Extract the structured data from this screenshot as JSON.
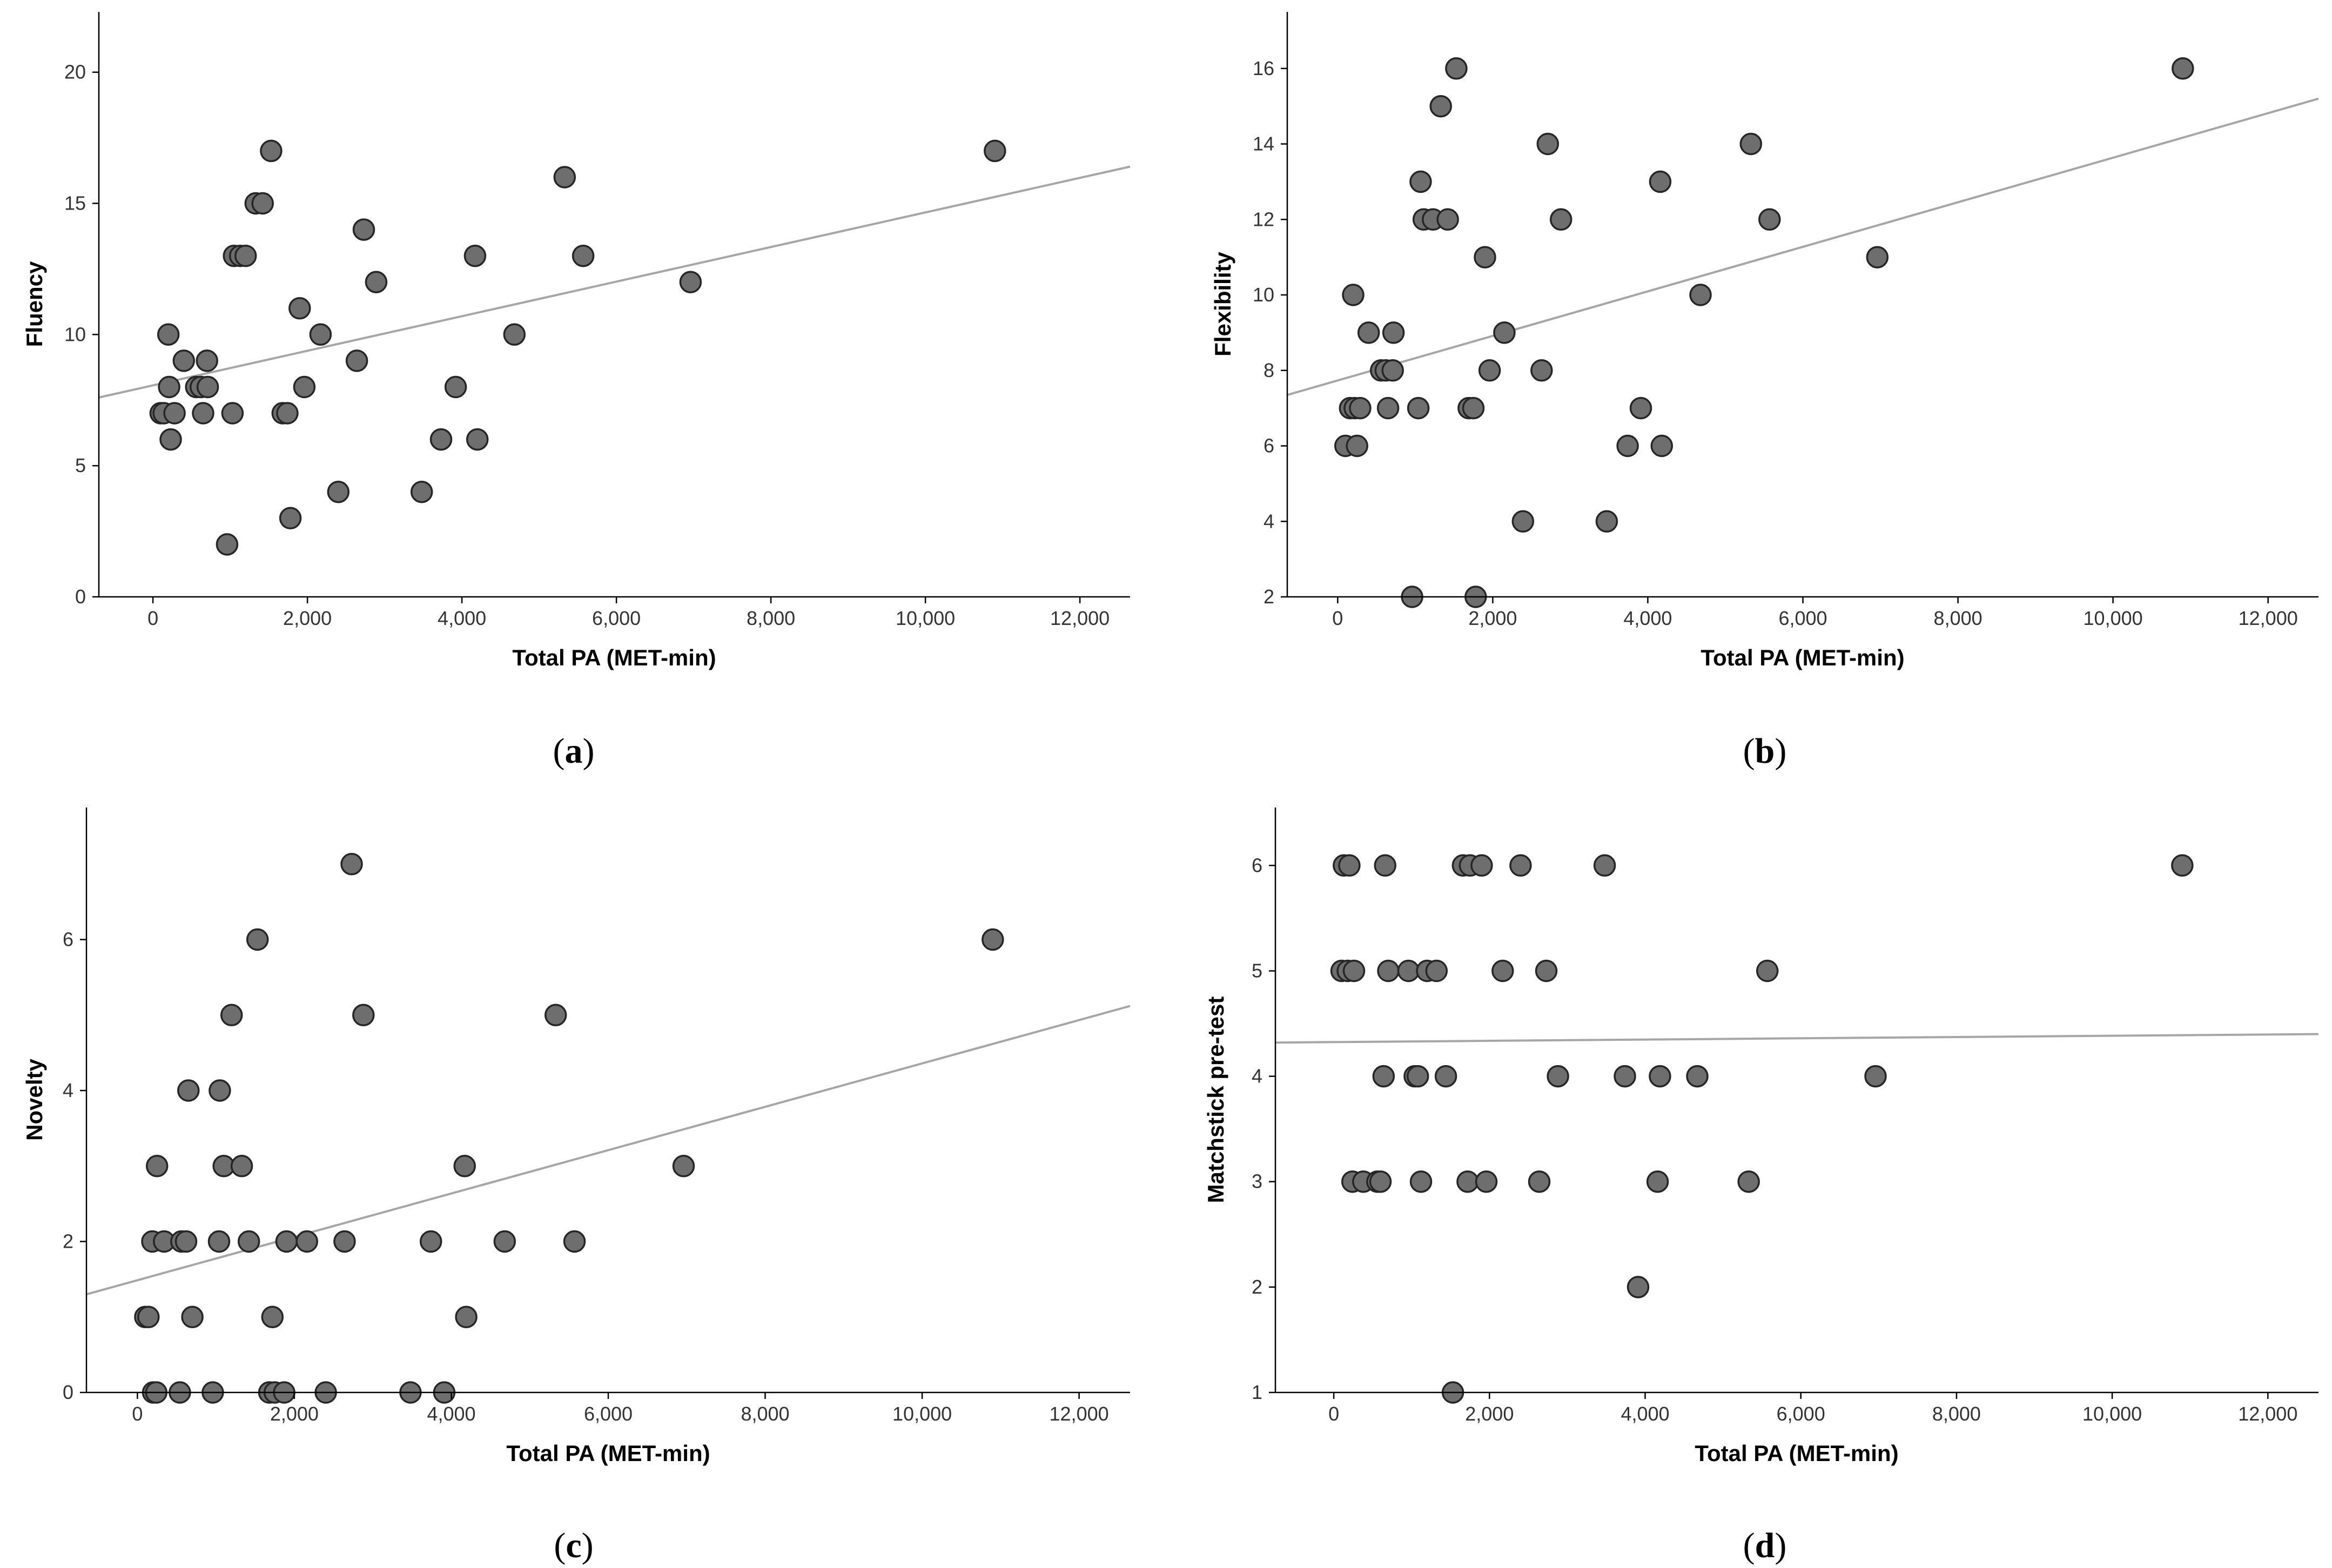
{
  "chart_data": [
    {
      "id": "a",
      "type": "scatter",
      "panel_label": "a",
      "xlabel": "Total PA (MET-min)",
      "ylabel": "Fluency",
      "xlim": [
        -700,
        12650
      ],
      "ylim": [
        0,
        22.3
      ],
      "xticks": [
        0,
        2000,
        4000,
        6000,
        8000,
        10000,
        12000
      ],
      "xtick_labels": [
        "0",
        "2,000",
        "4,000",
        "6,000",
        "8,000",
        "10,000",
        "12,000"
      ],
      "yticks": [
        0,
        5,
        10,
        15,
        20
      ],
      "ytick_labels": [
        "0",
        "5",
        "10",
        "15",
        "20"
      ],
      "fit_line": {
        "x": [
          -700,
          12650
        ],
        "y": [
          7.6,
          16.4
        ]
      },
      "points": [
        [
          100,
          7
        ],
        [
          140,
          7
        ],
        [
          200,
          10
        ],
        [
          210,
          8
        ],
        [
          230,
          6
        ],
        [
          280,
          7
        ],
        [
          400,
          9
        ],
        [
          560,
          8
        ],
        [
          620,
          8
        ],
        [
          650,
          7
        ],
        [
          700,
          9
        ],
        [
          710,
          8
        ],
        [
          960,
          2
        ],
        [
          1030,
          7
        ],
        [
          1050,
          13
        ],
        [
          1130,
          13
        ],
        [
          1200,
          13
        ],
        [
          1330,
          15
        ],
        [
          1420,
          15
        ],
        [
          1530,
          17
        ],
        [
          1680,
          7
        ],
        [
          1740,
          7
        ],
        [
          1780,
          3
        ],
        [
          1900,
          11
        ],
        [
          1960,
          8
        ],
        [
          2170,
          10
        ],
        [
          2400,
          4
        ],
        [
          2640,
          9
        ],
        [
          2730,
          14
        ],
        [
          2890,
          12
        ],
        [
          3480,
          4
        ],
        [
          3730,
          6
        ],
        [
          3920,
          8
        ],
        [
          4170,
          13
        ],
        [
          4200,
          6
        ],
        [
          4680,
          10
        ],
        [
          5330,
          16
        ],
        [
          5570,
          13
        ],
        [
          6960,
          12
        ],
        [
          10900,
          17
        ]
      ]
    },
    {
      "id": "b",
      "type": "scatter",
      "panel_label": "b",
      "xlabel": "Total PA (MET-min)",
      "ylabel": "Flexibility",
      "xlim": [
        -650,
        12650
      ],
      "ylim": [
        2,
        17.5
      ],
      "xticks": [
        0,
        2000,
        4000,
        6000,
        8000,
        10000,
        12000
      ],
      "xtick_labels": [
        "0",
        "2,000",
        "4,000",
        "6,000",
        "8,000",
        "10,000",
        "12,000"
      ],
      "yticks": [
        2,
        4,
        6,
        8,
        10,
        12,
        14,
        16
      ],
      "ytick_labels": [
        "2",
        "4",
        "6",
        "8",
        "10",
        "12",
        "14",
        "16"
      ],
      "fit_line": {
        "x": [
          -650,
          12650
        ],
        "y": [
          7.35,
          15.2
        ]
      },
      "points": [
        [
          100,
          6
        ],
        [
          160,
          7
        ],
        [
          200,
          10
        ],
        [
          220,
          7
        ],
        [
          250,
          6
        ],
        [
          290,
          7
        ],
        [
          400,
          9
        ],
        [
          560,
          8
        ],
        [
          620,
          8
        ],
        [
          650,
          7
        ],
        [
          710,
          8
        ],
        [
          720,
          9
        ],
        [
          960,
          2
        ],
        [
          1040,
          7
        ],
        [
          1070,
          13
        ],
        [
          1110,
          12
        ],
        [
          1230,
          12
        ],
        [
          1330,
          15
        ],
        [
          1420,
          12
        ],
        [
          1530,
          16
        ],
        [
          1690,
          7
        ],
        [
          1750,
          7
        ],
        [
          1780,
          2
        ],
        [
          1900,
          11
        ],
        [
          1960,
          8
        ],
        [
          2150,
          9
        ],
        [
          2390,
          4
        ],
        [
          2630,
          8
        ],
        [
          2710,
          14
        ],
        [
          2880,
          12
        ],
        [
          3470,
          4
        ],
        [
          3740,
          6
        ],
        [
          3910,
          7
        ],
        [
          4160,
          13
        ],
        [
          4180,
          6
        ],
        [
          4680,
          10
        ],
        [
          5330,
          14
        ],
        [
          5570,
          12
        ],
        [
          6960,
          11
        ],
        [
          10900,
          16
        ]
      ]
    },
    {
      "id": "c",
      "type": "scatter",
      "panel_label": "c",
      "xlabel": "Total PA (MET-min)",
      "ylabel": "Novelty",
      "xlim": [
        -650,
        12650
      ],
      "ylim": [
        0,
        7.75
      ],
      "xticks": [
        0,
        2000,
        4000,
        6000,
        8000,
        10000,
        12000
      ],
      "xtick_labels": [
        "0",
        "2,000",
        "4,000",
        "6,000",
        "8,000",
        "10,000",
        "12,000"
      ],
      "yticks": [
        0,
        2,
        4,
        6
      ],
      "ytick_labels": [
        "0",
        "2",
        "4",
        "6"
      ],
      "fit_line": {
        "x": [
          -650,
          12650
        ],
        "y": [
          1.3,
          5.12
        ]
      },
      "points": [
        [
          100,
          1
        ],
        [
          140,
          1
        ],
        [
          190,
          2
        ],
        [
          200,
          0
        ],
        [
          240,
          0
        ],
        [
          250,
          3
        ],
        [
          340,
          2
        ],
        [
          540,
          0
        ],
        [
          560,
          2
        ],
        [
          620,
          2
        ],
        [
          650,
          4
        ],
        [
          700,
          1
        ],
        [
          960,
          0
        ],
        [
          1040,
          2
        ],
        [
          1050,
          4
        ],
        [
          1100,
          3
        ],
        [
          1200,
          5
        ],
        [
          1330,
          3
        ],
        [
          1420,
          2
        ],
        [
          1530,
          6
        ],
        [
          1680,
          0
        ],
        [
          1720,
          1
        ],
        [
          1750,
          0
        ],
        [
          1870,
          0
        ],
        [
          1900,
          2
        ],
        [
          2160,
          2
        ],
        [
          2400,
          0
        ],
        [
          2640,
          2
        ],
        [
          2730,
          7
        ],
        [
          2880,
          5
        ],
        [
          3480,
          0
        ],
        [
          3740,
          2
        ],
        [
          3910,
          0
        ],
        [
          4170,
          3
        ],
        [
          4190,
          1
        ],
        [
          4680,
          2
        ],
        [
          5330,
          5
        ],
        [
          5570,
          2
        ],
        [
          6960,
          3
        ],
        [
          10900,
          6
        ]
      ]
    },
    {
      "id": "d",
      "type": "scatter",
      "panel_label": "d",
      "xlabel": "Total PA (MET-min)",
      "ylabel": "Matchstick pre-test",
      "xlim": [
        -750,
        12650
      ],
      "ylim": [
        1,
        6.55
      ],
      "xticks": [
        0,
        2000,
        4000,
        6000,
        8000,
        10000,
        12000
      ],
      "xtick_labels": [
        "0",
        "2,000",
        "4,000",
        "6,000",
        "8,000",
        "10,000",
        "12,000"
      ],
      "yticks": [
        1,
        2,
        3,
        4,
        5,
        6
      ],
      "ytick_labels": [
        "1",
        "2",
        "3",
        "4",
        "5",
        "6"
      ],
      "fit_line": {
        "x": [
          -750,
          12650
        ],
        "y": [
          4.32,
          4.4
        ]
      },
      "points": [
        [
          100,
          5
        ],
        [
          130,
          6
        ],
        [
          180,
          5
        ],
        [
          200,
          6
        ],
        [
          240,
          3
        ],
        [
          260,
          5
        ],
        [
          380,
          3
        ],
        [
          560,
          3
        ],
        [
          600,
          3
        ],
        [
          640,
          4
        ],
        [
          660,
          6
        ],
        [
          700,
          5
        ],
        [
          960,
          5
        ],
        [
          1040,
          4
        ],
        [
          1080,
          4
        ],
        [
          1120,
          3
        ],
        [
          1200,
          5
        ],
        [
          1320,
          5
        ],
        [
          1440,
          4
        ],
        [
          1530,
          1
        ],
        [
          1660,
          6
        ],
        [
          1720,
          3
        ],
        [
          1750,
          6
        ],
        [
          1900,
          6
        ],
        [
          1960,
          3
        ],
        [
          2170,
          5
        ],
        [
          2400,
          6
        ],
        [
          2640,
          3
        ],
        [
          2730,
          5
        ],
        [
          2880,
          4
        ],
        [
          3480,
          6
        ],
        [
          3740,
          4
        ],
        [
          3910,
          2
        ],
        [
          4160,
          3
        ],
        [
          4190,
          4
        ],
        [
          4670,
          4
        ],
        [
          5330,
          3
        ],
        [
          5570,
          5
        ],
        [
          6960,
          4
        ],
        [
          10900,
          6
        ]
      ]
    }
  ]
}
